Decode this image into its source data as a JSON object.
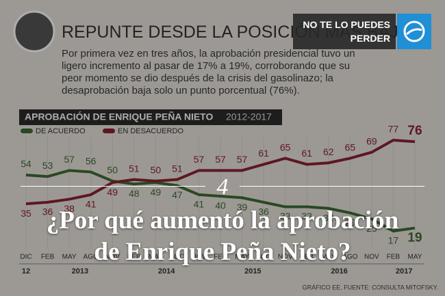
{
  "header": {
    "title": "REPUNTE DESDE LA POSICIÓN MÁS BAJA",
    "body": "Por primera vez en tres años, la aprobación presidencial tuvo un ligero incremento al pasar de 17% a 19%, corroborando que su peor momento se dio después de la crisis del gasolinazo; la desaprobación baja solo un punto porcentual (76%)."
  },
  "badge": {
    "text": "NO TE LO PUEDES PERDER"
  },
  "chart_data": {
    "type": "line",
    "title": "APROBACIÓN DE ENRIQUE PEÑA NIETO",
    "subtitle": "2012-2017",
    "categories": [
      "DIC",
      "FEB",
      "MAY",
      "AGO",
      "NOV",
      "FEB",
      "MAY",
      "AGO",
      "NOV",
      "FEB",
      "MAY",
      "AGO",
      "NOV",
      "FEB",
      "MAY",
      "AGO",
      "NOV",
      "FEB",
      "MAY"
    ],
    "years": [
      "12",
      "2013",
      "2014",
      "2015",
      "2016",
      "2017"
    ],
    "series": [
      {
        "name": "DE ACUERDO",
        "color": "#3f6a34",
        "values": [
          54,
          53,
          57,
          56,
          50,
          48,
          49,
          47,
          41,
          40,
          39,
          36,
          33,
          33,
          32,
          29,
          25,
          17,
          19
        ]
      },
      {
        "name": "EN DESACUERDO",
        "color": "#8a2331",
        "values": [
          35,
          36,
          38,
          41,
          49,
          51,
          50,
          51,
          57,
          57,
          57,
          61,
          65,
          61,
          62,
          65,
          69,
          77,
          76
        ]
      }
    ],
    "source": "GRÁFICO EE. FUENTE: CONSULTA MITOFSKY."
  },
  "overlay": {
    "number": "4",
    "headline": "¿Por qué aumentó la aprobación de Enrique Peña Nieto?"
  }
}
